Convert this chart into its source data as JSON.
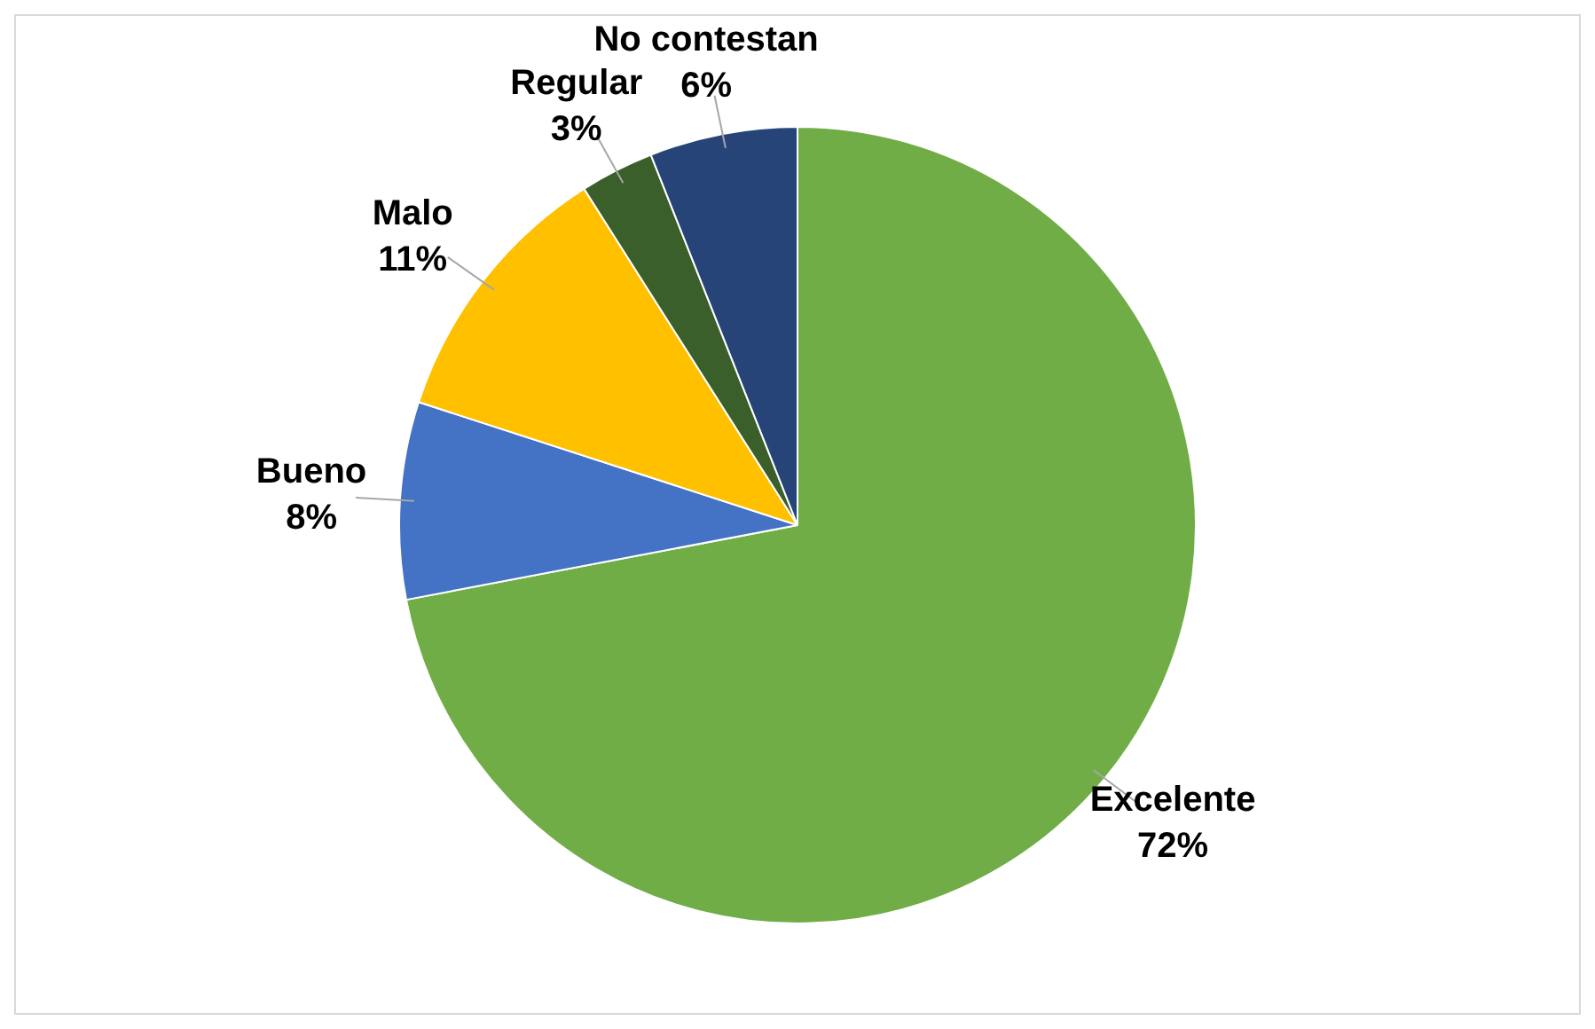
{
  "chart_data": {
    "type": "pie",
    "categories": [
      "Excelente",
      "Bueno",
      "Malo",
      "Regular",
      "No contestan"
    ],
    "values": [
      72,
      8,
      11,
      3,
      6
    ],
    "value_labels": [
      "72%",
      "8%",
      "11%",
      "3%",
      "6%"
    ],
    "colors": [
      "#70ad47",
      "#4472c4",
      "#ffc000",
      "#3a5f2b",
      "#264478"
    ],
    "legend": false
  }
}
